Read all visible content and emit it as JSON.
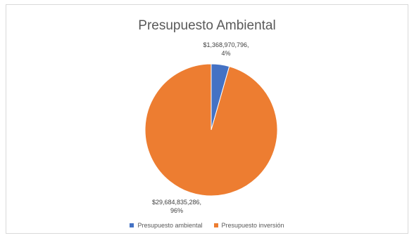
{
  "chart_data": {
    "type": "pie",
    "title": "Presupuesto Ambiental",
    "categories": [
      "Presupuesto ambiental",
      "Presupuesto inversión"
    ],
    "values": [
      1368970796,
      29684835286
    ],
    "percent_labels": [
      "4%",
      "96%"
    ],
    "value_labels": [
      "$1,368,970,796,",
      "$29,684,835,286,"
    ],
    "colors": [
      "#4472c4",
      "#ed7d31"
    ],
    "legend_position": "bottom",
    "start_angle_deg": 0
  }
}
